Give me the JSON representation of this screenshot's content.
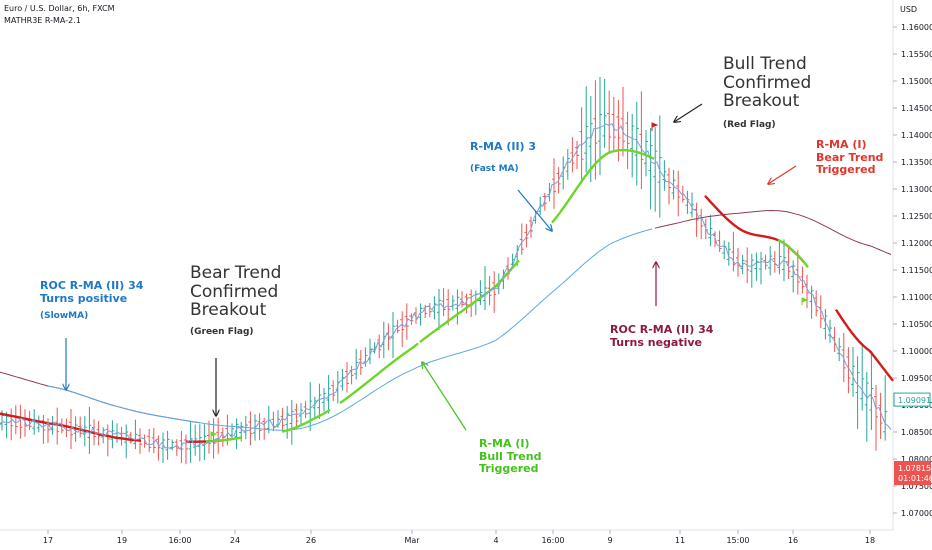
{
  "header": {
    "symbol": "Euro / U.S. Dollar, 6h, FXCM",
    "indicator": "MATHR3E R-MA-2.1"
  },
  "price_scale": {
    "currency": "USD",
    "ticks": [
      "1.16000",
      "1.15500",
      "1.15000",
      "1.14500",
      "1.14000",
      "1.13500",
      "1.13000",
      "1.12500",
      "1.12000",
      "1.11500",
      "1.11000",
      "1.10500",
      "1.10000",
      "1.09500",
      "1.09000",
      "1.08500",
      "1.08000",
      "1.07500",
      "1.07000"
    ],
    "last_price_tag": "1.09091",
    "current_price_tag": "1.07815",
    "countdown_tag": "01:01:46"
  },
  "time_axis": {
    "labels": [
      "17",
      "19",
      "16:00",
      "24",
      "26",
      "Mar",
      "4",
      "16:00",
      "9",
      "11",
      "15:00",
      "16",
      "18"
    ]
  },
  "annotations": {
    "slow_ma_title": "ROC R-MA (II) 34",
    "slow_ma_sub": "Turns positive",
    "slow_ma_note": "(SlowMA)",
    "bear_title_1": "Bear Trend",
    "bear_title_2": "Confirmed",
    "bear_title_3": "Breakout",
    "bear_note": "(Green Flag)",
    "fast_ma_title": "R-MA (II) 3",
    "fast_ma_note": "(Fast MA)",
    "bull_title_1": "Bull Trend",
    "bull_title_2": "Confirmed",
    "bull_title_3": "Breakout",
    "bull_note": "(Red Flag)",
    "rma1_bear_1": "R-MA (I)",
    "rma1_bear_2": "Bear Trend",
    "rma1_bear_3": "Triggered",
    "rma1_bull_1": "R-MA (I)",
    "rma1_bull_2": "Bull Trend",
    "rma1_bull_3": "Triggered",
    "roc_neg_1": "ROC R-MA (II) 34",
    "roc_neg_2": "Turns negative"
  },
  "colors": {
    "bull_bar": "#26a69a",
    "bear_bar": "#ef5350",
    "fast_ma": "#7e9fd6",
    "slow_ma_rising": "#5aa9e6",
    "slow_ma_falling": "#8e3b4e",
    "rma1_bull": "#6cd629",
    "rma1_bear": "#d51a1a",
    "blue_text": "#1e78c8",
    "green_text": "#44c21a",
    "red_text": "#e0362c",
    "maroon_text": "#8b1a3c"
  },
  "chart_data": {
    "type": "line",
    "title": "Euro / U.S. Dollar, 6h, FXCM",
    "xlabel": "",
    "ylabel": "",
    "ylim": [
      1.068,
      1.163
    ],
    "grid": false,
    "x": [
      "17",
      "19",
      "16:00",
      "24",
      "26",
      "Mar",
      "4",
      "16:00",
      "9",
      "11",
      "15:00",
      "16",
      "18"
    ],
    "series": [
      {
        "name": "R-MA (II) 3",
        "values": [
          1.0861,
          1.0842,
          1.0826,
          1.0852,
          1.0897,
          1.1061,
          1.1118,
          1.1304,
          1.1418,
          1.1292,
          1.1165,
          1.1148,
          1.0915
        ]
      },
      {
        "name": "R-MA (II) 34",
        "values": [
          1.0935,
          1.0895,
          1.0873,
          1.086,
          1.0862,
          1.0965,
          1.102,
          1.111,
          1.1198,
          1.1238,
          1.1255,
          1.1255,
          1.1195
        ]
      },
      {
        "name": "R-MA (I)",
        "values": [
          1.0866,
          1.0838,
          1.0832,
          1.0838,
          1.0872,
          1.1005,
          1.112,
          1.124,
          1.1368,
          1.133,
          1.1228,
          1.1185,
          1.1
        ]
      }
    ]
  }
}
